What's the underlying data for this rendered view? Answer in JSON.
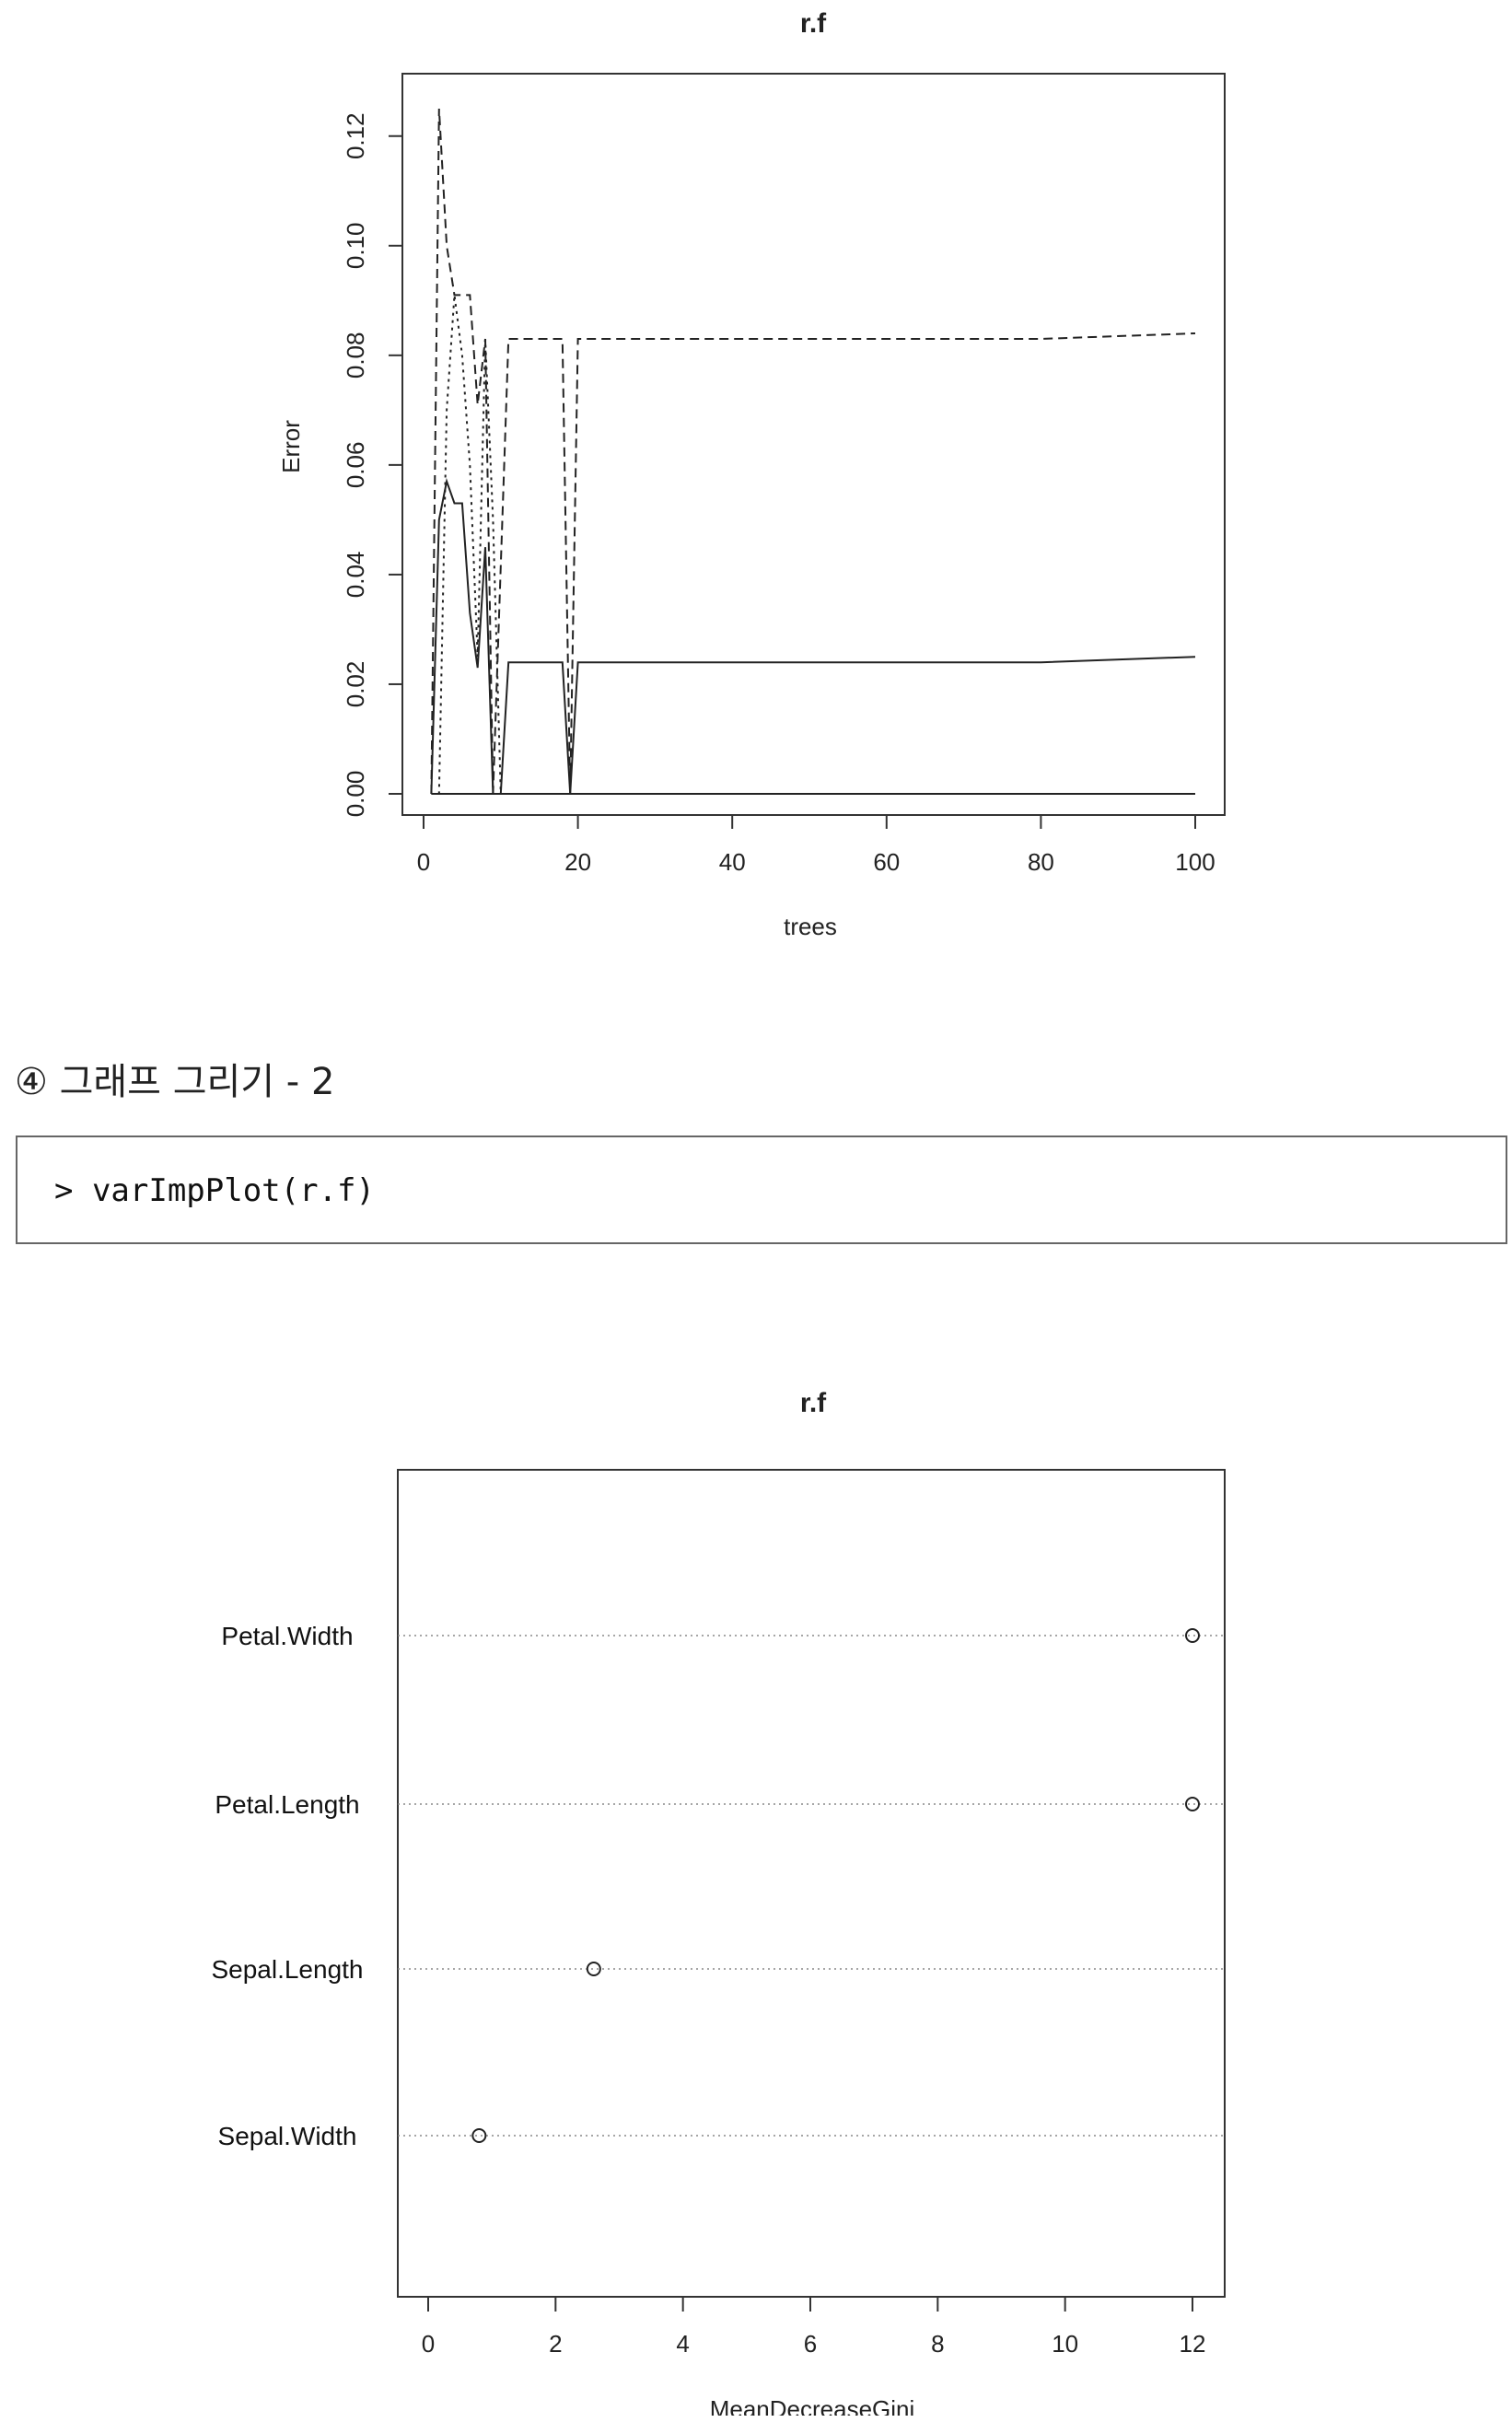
{
  "section": {
    "heading": "④ 그래프 그리기 - 2",
    "code": "> varImpPlot(r.f)"
  },
  "chart_data": [
    {
      "type": "line",
      "title": "r.f",
      "xlabel": "trees",
      "ylabel": "Error",
      "xlim": [
        0,
        100
      ],
      "ylim": [
        0,
        0.125
      ],
      "x_ticks": [
        "0",
        "20",
        "40",
        "60",
        "80",
        "100"
      ],
      "y_ticks": [
        "0.00",
        "0.02",
        "0.04",
        "0.06",
        "0.08",
        "0.10",
        "0.12"
      ],
      "grid": false,
      "series": [
        {
          "line_style": "solid",
          "points": [
            [
              1,
              0
            ],
            [
              2,
              0.0
            ],
            [
              3,
              0.0
            ],
            [
              4,
              0.0
            ],
            [
              5,
              0.0
            ],
            [
              6,
              0.0
            ],
            [
              7,
              0.0
            ],
            [
              8,
              0.0
            ],
            [
              9,
              0.0
            ],
            [
              10,
              0.0
            ],
            [
              20,
              0.0
            ],
            [
              40,
              0.0
            ],
            [
              60,
              0.0
            ],
            [
              80,
              0.0
            ],
            [
              100,
              0.0
            ]
          ]
        },
        {
          "line_style": "dashed",
          "points": [
            [
              1,
              0.0
            ],
            [
              2,
              0.125
            ],
            [
              3,
              0.1
            ],
            [
              4,
              0.091
            ],
            [
              5,
              0.091
            ],
            [
              6,
              0.091
            ],
            [
              7,
              0.071
            ],
            [
              8,
              0.083
            ],
            [
              9,
              0.0
            ],
            [
              11,
              0.083
            ],
            [
              18,
              0.083
            ],
            [
              19,
              0.0
            ],
            [
              20,
              0.083
            ],
            [
              40,
              0.083
            ],
            [
              60,
              0.083
            ],
            [
              80,
              0.083
            ],
            [
              100,
              0.084
            ]
          ]
        },
        {
          "line_style": "dotted",
          "points": [
            [
              1,
              0.0
            ],
            [
              2,
              0.0
            ],
            [
              3,
              0.07
            ],
            [
              4,
              0.091
            ],
            [
              5,
              0.08
            ],
            [
              6,
              0.06
            ],
            [
              7,
              0.025
            ],
            [
              8,
              0.083
            ],
            [
              9,
              0.05
            ],
            [
              10,
              0.0
            ],
            [
              11,
              0.0
            ],
            [
              19,
              0.0
            ],
            [
              20,
              0.0
            ],
            [
              40,
              0.0
            ],
            [
              100,
              0.0
            ]
          ]
        },
        {
          "line_style": "solid",
          "points": [
            [
              1,
              0.0
            ],
            [
              2,
              0.05
            ],
            [
              3,
              0.057
            ],
            [
              4,
              0.053
            ],
            [
              5,
              0.053
            ],
            [
              6,
              0.033
            ],
            [
              7,
              0.023
            ],
            [
              8,
              0.045
            ],
            [
              9,
              0.0
            ],
            [
              10,
              0.0
            ],
            [
              11,
              0.024
            ],
            [
              18,
              0.024
            ],
            [
              19,
              0.0
            ],
            [
              20,
              0.024
            ],
            [
              40,
              0.024
            ],
            [
              60,
              0.024
            ],
            [
              80,
              0.024
            ],
            [
              100,
              0.025
            ]
          ]
        }
      ]
    },
    {
      "type": "scatter",
      "title": "r.f",
      "xlabel": "MeanDecreaseGini",
      "ylabel": "",
      "xlim": [
        0,
        12
      ],
      "x_ticks": [
        "0",
        "2",
        "4",
        "6",
        "8",
        "10",
        "12"
      ],
      "categories": [
        "Petal.Width",
        "Petal.Length",
        "Sepal.Length",
        "Sepal.Width"
      ],
      "values": [
        12.0,
        12.0,
        2.6,
        0.8
      ],
      "grid": false
    }
  ]
}
